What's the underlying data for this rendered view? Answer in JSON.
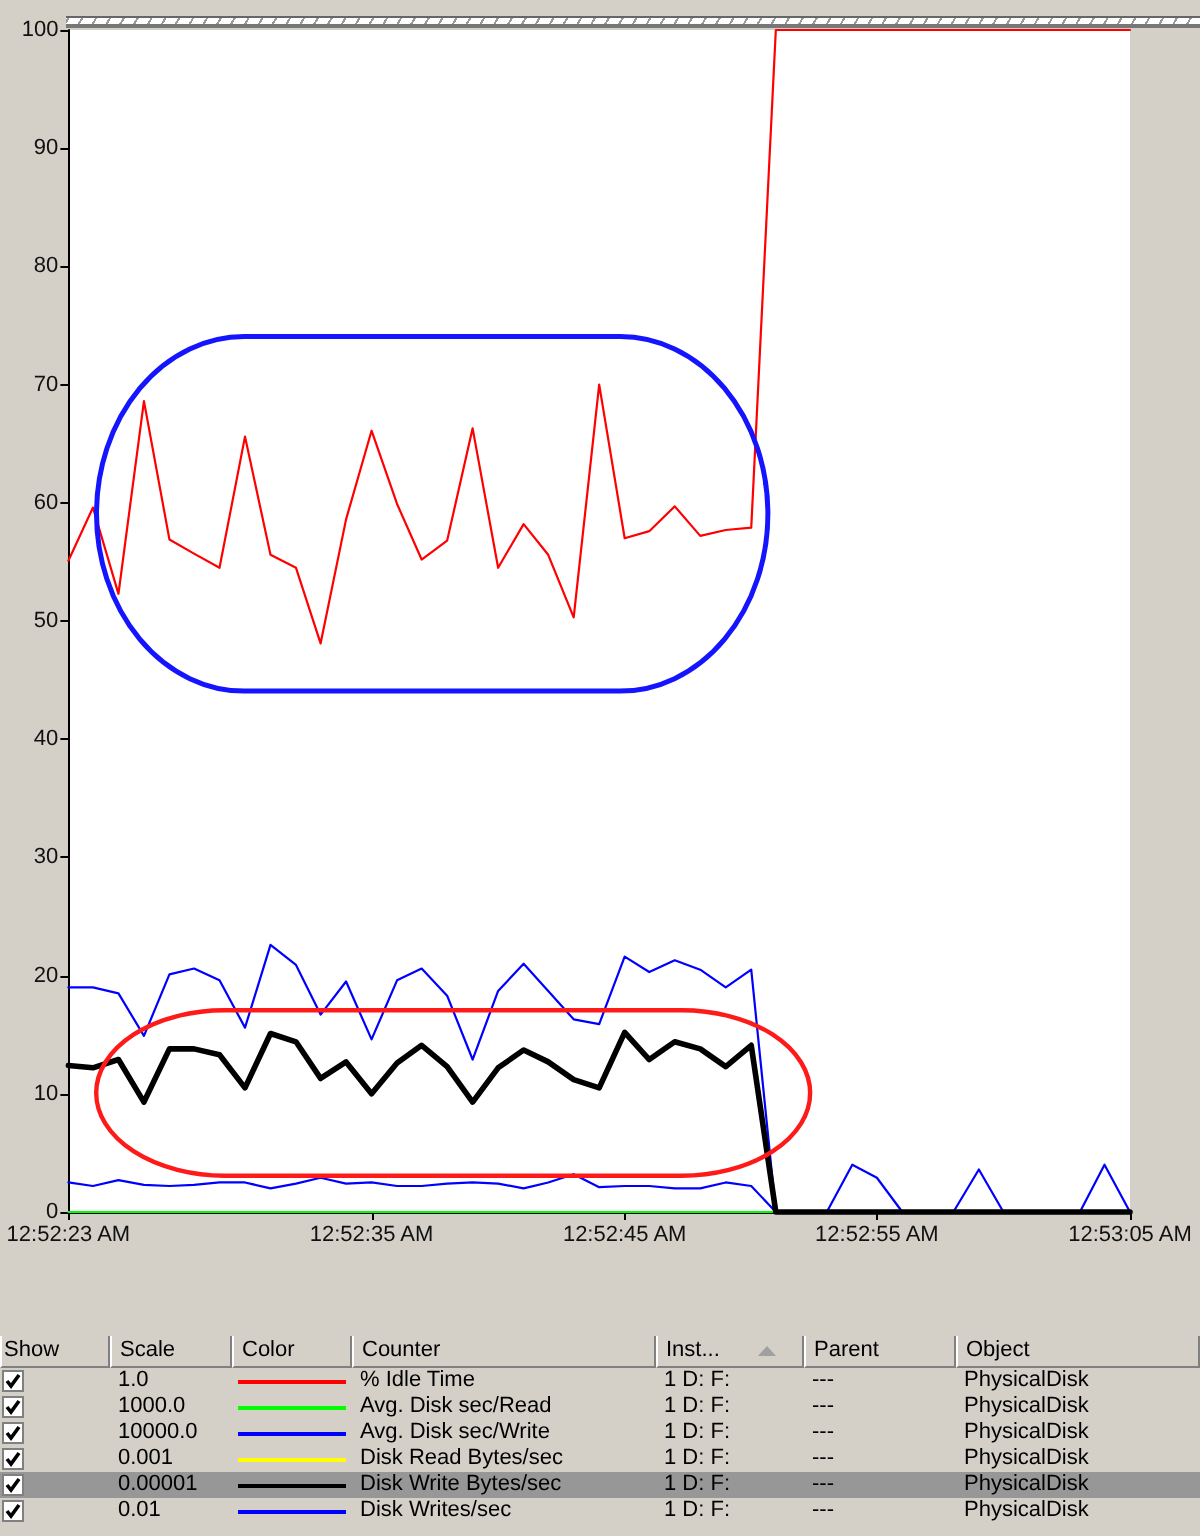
{
  "chart_data": {
    "type": "line",
    "x": [
      0.87306,
      0.87333,
      0.87361,
      0.87389,
      0.87417,
      0.87444,
      0.87472,
      0.875,
      0.87528,
      0.87556,
      0.87583,
      0.87611,
      0.87639,
      0.87667,
      0.87694,
      0.87722,
      0.8775,
      0.87778,
      0.87806,
      0.87833,
      0.87861,
      0.87889,
      0.87917,
      0.87944,
      0.87972,
      0.88,
      0.88028,
      0.88056,
      0.88083,
      0.88111,
      0.88139,
      0.88167,
      0.88194,
      0.88222,
      0.8825,
      0.88278,
      0.88306,
      0.88333,
      0.88361,
      0.88389,
      0.88417,
      0.88444,
      0.88472
    ],
    "xlim": [
      0.87306,
      0.88472
    ],
    "xticks": [
      {
        "value": 0.87306,
        "label": "12:52:23 AM"
      },
      {
        "value": 0.87639,
        "label": "12:52:35 AM"
      },
      {
        "value": 0.87917,
        "label": "12:52:45 AM"
      },
      {
        "value": 0.88194,
        "label": "12:52:55 AM"
      },
      {
        "value": 0.88472,
        "label": "12:53:05 AM"
      }
    ],
    "ylim": [
      0,
      100
    ],
    "yticks": [
      0,
      10,
      20,
      30,
      40,
      50,
      60,
      70,
      80,
      90,
      100
    ],
    "legend": "bottom",
    "series": [
      {
        "name": "% Idle Time",
        "color": "#ff0000",
        "values": [
          55.1,
          59.6,
          52.3,
          68.6,
          56.9,
          55.7,
          54.5,
          65.6,
          55.6,
          54.5,
          48.1,
          58.6,
          66.1,
          59.9,
          55.2,
          56.8,
          66.3,
          54.5,
          58.2,
          55.6,
          50.3,
          70.0,
          57.0,
          57.6,
          59.7,
          57.2,
          57.7,
          57.9,
          100,
          100,
          100,
          100,
          100,
          100,
          100,
          100,
          100,
          100,
          100,
          100,
          100,
          100,
          100
        ]
      },
      {
        "name": "Avg. Disk sec/Read",
        "color": "#00ff00",
        "values": [
          0,
          0,
          0,
          0,
          0,
          0,
          0,
          0,
          0,
          0,
          0,
          0,
          0,
          0,
          0,
          0,
          0,
          0,
          0,
          0,
          0,
          0,
          0,
          0,
          0,
          0,
          0,
          0,
          0,
          null,
          null,
          null,
          null,
          null,
          null,
          null,
          null,
          null,
          null,
          null,
          null,
          null,
          null
        ]
      },
      {
        "name": "Avg. Disk sec/Write",
        "color": "#0000ff",
        "values": [
          2.5,
          2.2,
          2.7,
          2.3,
          2.2,
          2.3,
          2.5,
          2.5,
          2.0,
          2.4,
          2.9,
          2.4,
          2.5,
          2.2,
          2.2,
          2.4,
          2.5,
          2.4,
          2.0,
          2.5,
          3.2,
          2.1,
          2.2,
          2.2,
          2.0,
          2.0,
          2.5,
          2.2,
          0,
          null,
          null,
          null,
          null,
          null,
          null,
          null,
          null,
          null,
          null,
          null,
          null,
          null,
          null
        ]
      },
      {
        "name": "Disk Read Bytes/sec",
        "color": "#ffff00",
        "values": [
          null,
          null,
          null,
          null,
          null,
          null,
          null,
          null,
          null,
          null,
          null,
          null,
          null,
          null,
          null,
          null,
          null,
          null,
          null,
          null,
          null,
          null,
          null,
          null,
          null,
          null,
          null,
          null,
          null,
          null,
          null,
          null,
          null,
          null,
          null,
          null,
          null,
          null,
          null,
          null,
          null,
          null,
          null
        ]
      },
      {
        "name": "Disk Write Bytes/sec",
        "color": "#000000",
        "values": [
          12.4,
          12.2,
          12.9,
          9.3,
          13.8,
          13.8,
          13.3,
          10.5,
          15.1,
          14.4,
          11.3,
          12.7,
          10.0,
          12.6,
          14.1,
          12.3,
          9.3,
          12.2,
          13.7,
          12.7,
          11.2,
          10.5,
          15.2,
          12.9,
          14.4,
          13.8,
          12.3,
          14.1,
          0,
          0,
          0,
          0,
          0,
          0,
          0,
          0,
          0,
          0,
          0,
          0,
          0,
          0,
          0
        ]
      },
      {
        "name": "Disk Writes/sec",
        "color": "#0000ff",
        "values": [
          19.0,
          19.0,
          18.5,
          14.9,
          20.1,
          20.6,
          19.6,
          15.6,
          22.6,
          20.9,
          16.7,
          19.5,
          14.6,
          19.6,
          20.6,
          18.3,
          12.9,
          18.7,
          21.0,
          18.7,
          16.3,
          15.9,
          21.6,
          20.3,
          21.3,
          20.5,
          19.0,
          20.5,
          0,
          null,
          0,
          4.0,
          2.9,
          0,
          null,
          0,
          3.6,
          0,
          null,
          null,
          0,
          4.0,
          0
        ]
      }
    ],
    "annotations": [
      "Show",
      "Color",
      "Scale",
      "Counter",
      "Inst...",
      "Parent",
      "Object",
      "1.0",
      "1 D: F:",
      "---",
      "PhysicalDisk",
      "1000.0",
      "1 D: F:",
      "---",
      "PhysicalDisk",
      "10000.0",
      "1 D: F:",
      "---",
      "PhysicalDisk",
      "0.001",
      "1 D: F:",
      "---",
      "PhysicalDisk",
      "0.00001",
      "1 D: F:",
      "---",
      "PhysicalDisk",
      "0.01",
      "1 D: F:",
      "---",
      "PhysicalDisk"
    ]
  }
}
